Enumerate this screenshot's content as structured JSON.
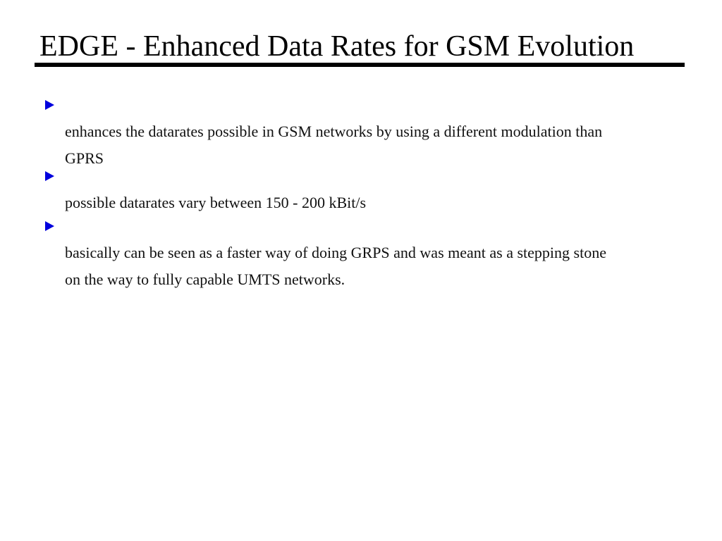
{
  "slide": {
    "title": "EDGE - Enhanced Data Rates for GSM Evolution",
    "bullets": [
      {
        "text": "enhances the datarates possible in GSM networks by using a different modulation than\nGPRS"
      },
      {
        "text": "possible datarates vary between 150 - 200 kBit/s"
      },
      {
        "text": "basically can be seen as a faster way of doing GRPS and was meant as a stepping stone\non the way to fully capable UMTS networks."
      }
    ]
  },
  "colors": {
    "background": "#ffffff",
    "title_text": "#000000",
    "title_rule": "#000000",
    "body_text": "#111111",
    "bullet_marker": "#0000dd"
  }
}
